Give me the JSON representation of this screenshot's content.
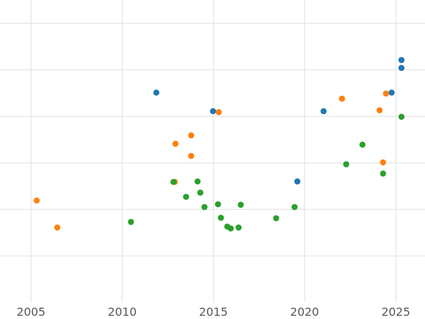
{
  "chart_data": {
    "type": "scatter",
    "xlim": [
      2003.3,
      2026.6
    ],
    "ylim": [
      -1,
      5.5
    ],
    "xticks": [
      2005,
      2010,
      2015,
      2020,
      2025
    ],
    "ygrid": [
      0,
      1,
      2,
      3,
      4,
      5
    ],
    "grid": true,
    "series": [
      {
        "color": "#1f77b4",
        "x": [
          2011.87,
          2014.98,
          2021.04,
          2019.6,
          2024.77,
          2025.31,
          2025.31
        ],
        "values": [
          3.51,
          3.11,
          3.11,
          1.6,
          3.51,
          4.21,
          4.04
        ]
      },
      {
        "color": "#ff7f0e",
        "x": [
          2005.31,
          2006.44,
          2012.92,
          2013.78,
          2013.78,
          2012.88,
          2015.29,
          2022.05,
          2024.46,
          2024.11,
          2024.3
        ],
        "values": [
          1.19,
          0.61,
          2.41,
          2.59,
          2.15,
          1.59,
          3.09,
          3.38,
          3.49,
          3.13,
          2.01
        ]
      },
      {
        "color": "#2ca02c",
        "x": [
          2010.48,
          2012.81,
          2013.5,
          2014.13,
          2014.28,
          2014.51,
          2015.25,
          2015.41,
          2015.76,
          2015.95,
          2016.38,
          2016.5,
          2018.44,
          2019.45,
          2022.28,
          2023.17,
          2024.3,
          2025.31
        ],
        "values": [
          0.73,
          1.59,
          1.27,
          1.6,
          1.36,
          1.05,
          1.11,
          0.82,
          0.63,
          0.59,
          0.61,
          1.1,
          0.81,
          1.05,
          1.97,
          2.39,
          1.77,
          2.99
        ]
      }
    ]
  }
}
